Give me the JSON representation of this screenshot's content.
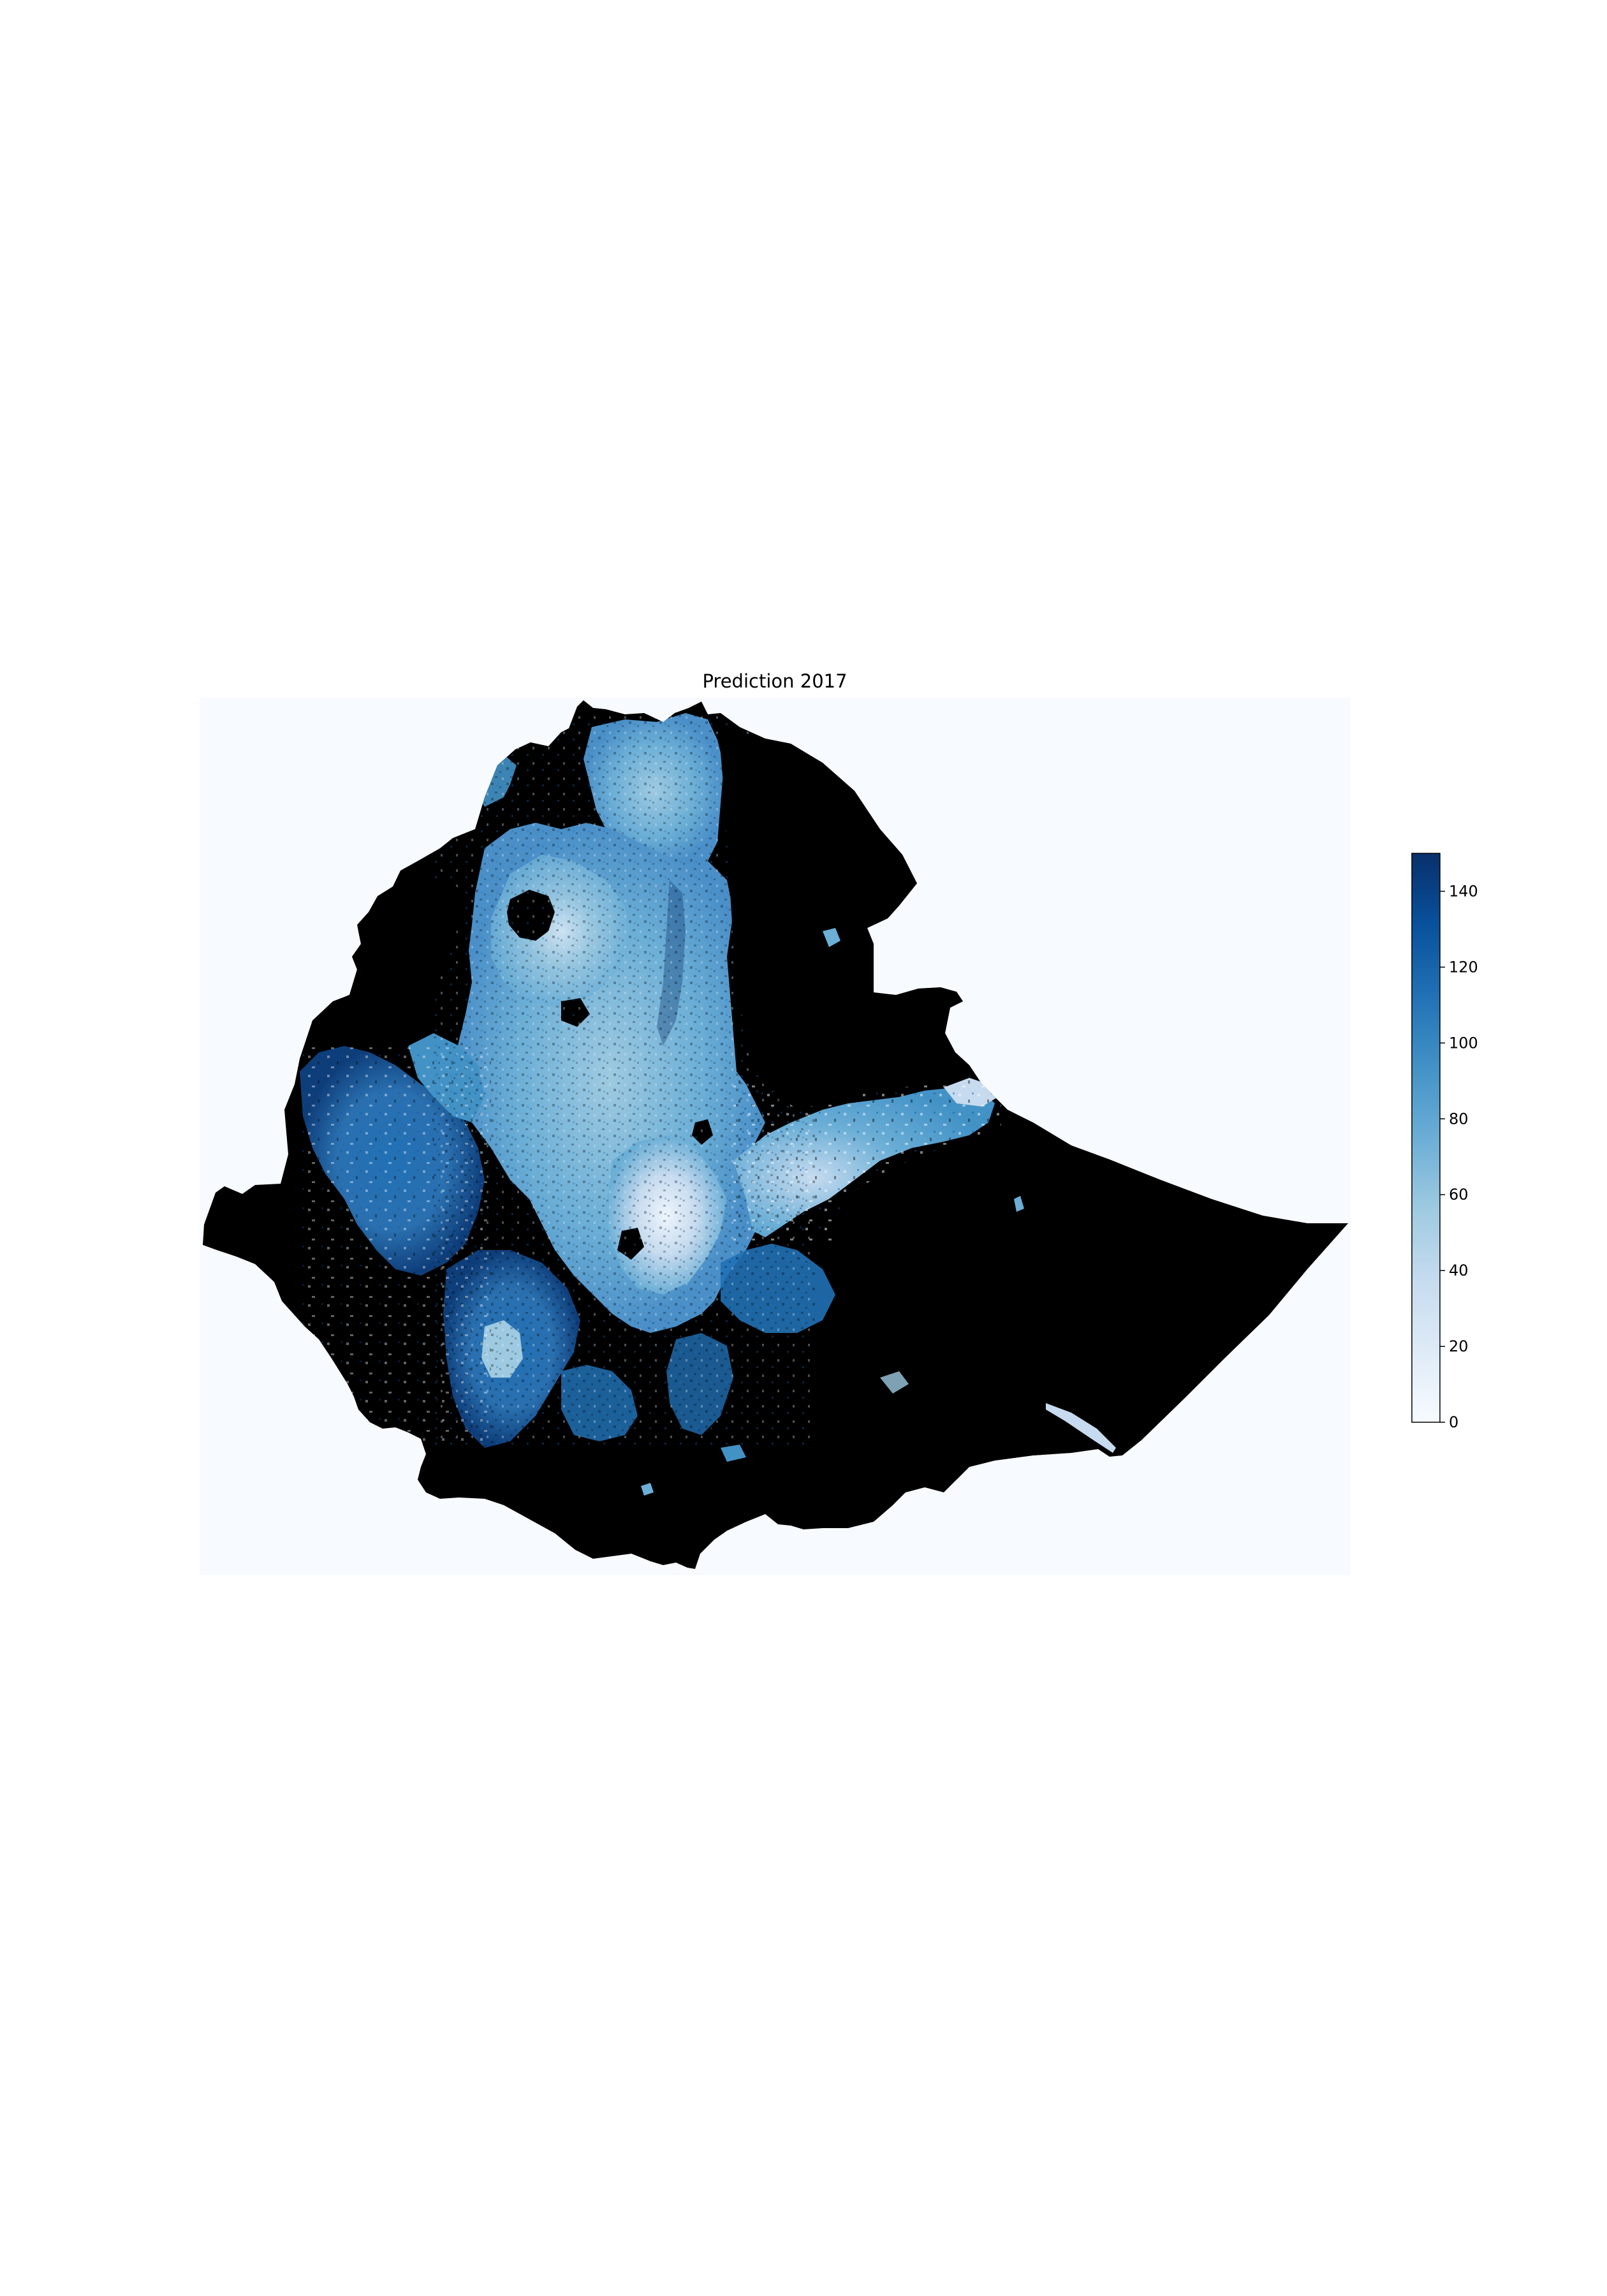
{
  "figure": {
    "title": "Prediction 2017"
  },
  "map": {
    "colormap": "Blues",
    "background_color": "#f7fbff",
    "no_data_color": "#000000",
    "low_color": "#f7fbff",
    "mid_color": "#6baed6",
    "high_color": "#08306b"
  },
  "colorbar": {
    "min": 0,
    "max": 150,
    "ticks": [
      {
        "value": 0,
        "label": "0"
      },
      {
        "value": 20,
        "label": "20"
      },
      {
        "value": 40,
        "label": "40"
      },
      {
        "value": 60,
        "label": "60"
      },
      {
        "value": 80,
        "label": "80"
      },
      {
        "value": 100,
        "label": "100"
      },
      {
        "value": 120,
        "label": "120"
      },
      {
        "value": 140,
        "label": "140"
      }
    ]
  }
}
